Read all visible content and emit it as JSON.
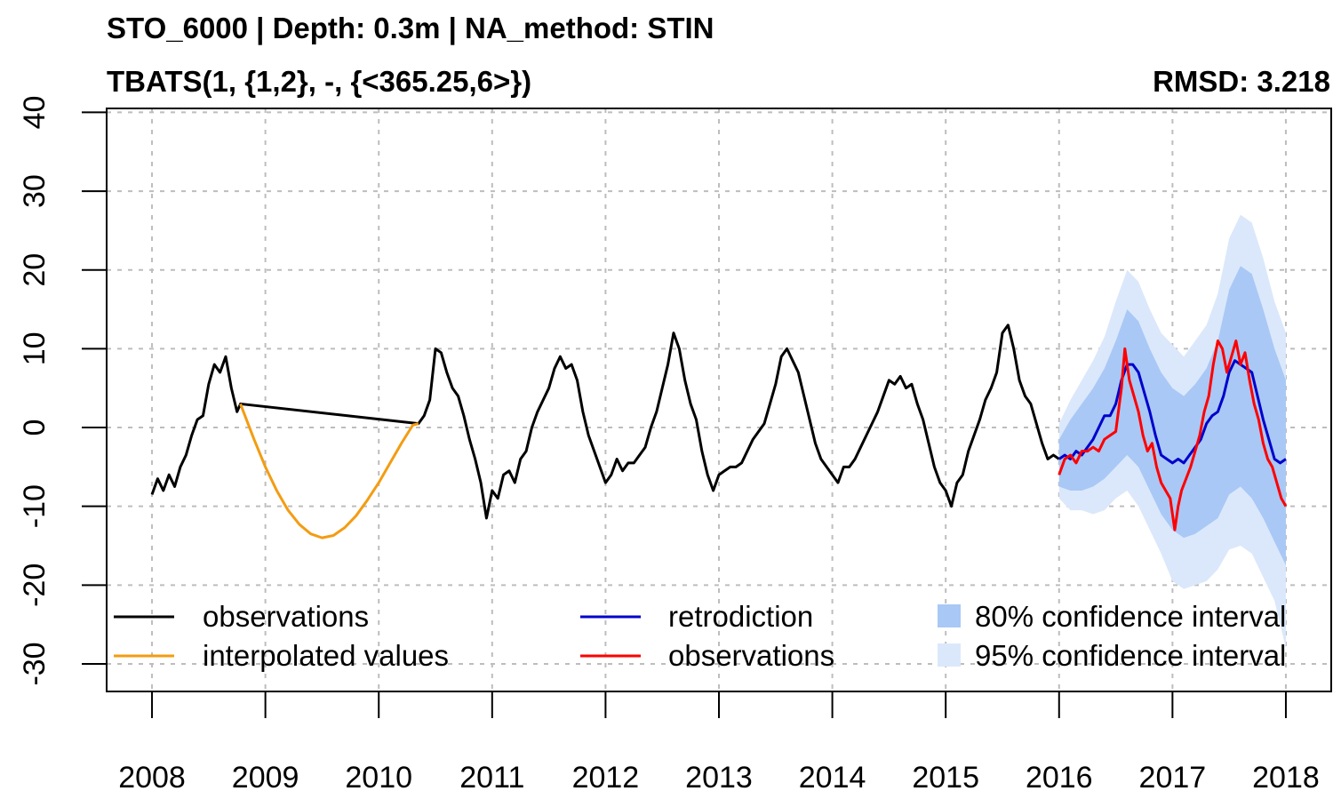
{
  "chart_data": {
    "type": "line",
    "title": "STO_6000 | Depth: 0.3m | NA_method: STIN",
    "subtitle": "TBATS(1, {1,2}, -, {<365.25,6>})",
    "annotation": "RMSD: 3.218",
    "xlabel": "",
    "ylabel": "",
    "xlim": [
      2007.6,
      2018.4
    ],
    "ylim": [
      -33.5,
      40.5
    ],
    "x_ticks": [
      2008,
      2009,
      2010,
      2011,
      2012,
      2013,
      2014,
      2015,
      2016,
      2017,
      2018
    ],
    "x_tick_labels": [
      "2008",
      "2009",
      "2010",
      "2011",
      "2012",
      "2013",
      "2014",
      "2015",
      "2016",
      "2017",
      "2018"
    ],
    "y_ticks": [
      -30,
      -20,
      -10,
      0,
      10,
      20,
      30,
      40
    ],
    "y_tick_labels": [
      "-30",
      "-20",
      "-10",
      "0",
      "10",
      "20",
      "30",
      "40"
    ],
    "grid": true,
    "legend_position": "bottom",
    "legend": [
      {
        "label": "observations",
        "type": "line",
        "color": "#000000"
      },
      {
        "label": "interpolated values",
        "type": "line",
        "color": "#f39c12"
      },
      {
        "label": "retrodiction",
        "type": "line",
        "color": "#0000cc"
      },
      {
        "label": "observations",
        "type": "line",
        "color": "#ff0000"
      },
      {
        "label": "80% confidence interval",
        "type": "band",
        "color": "#a9c8f5"
      },
      {
        "label": "95% confidence interval",
        "type": "band",
        "color": "#dbe8fb"
      }
    ],
    "series": [
      {
        "name": "observations",
        "color": "#000000",
        "points": [
          [
            2008.0,
            -8.5
          ],
          [
            2008.05,
            -6.5
          ],
          [
            2008.1,
            -8.0
          ],
          [
            2008.15,
            -6.0
          ],
          [
            2008.2,
            -7.5
          ],
          [
            2008.25,
            -5.0
          ],
          [
            2008.3,
            -3.5
          ],
          [
            2008.35,
            -1.0
          ],
          [
            2008.4,
            1.0
          ],
          [
            2008.45,
            1.5
          ],
          [
            2008.5,
            5.5
          ],
          [
            2008.55,
            8.0
          ],
          [
            2008.6,
            7.0
          ],
          [
            2008.65,
            9.0
          ],
          [
            2008.7,
            5.0
          ],
          [
            2008.75,
            2.0
          ],
          [
            2008.78,
            3.0
          ],
          [
            2010.35,
            0.5
          ],
          [
            2010.4,
            1.5
          ],
          [
            2010.45,
            3.5
          ],
          [
            2010.5,
            10.0
          ],
          [
            2010.55,
            9.5
          ],
          [
            2010.6,
            7.0
          ],
          [
            2010.65,
            5.0
          ],
          [
            2010.7,
            4.0
          ],
          [
            2010.75,
            1.5
          ],
          [
            2010.8,
            -1.5
          ],
          [
            2010.85,
            -4.0
          ],
          [
            2010.9,
            -7.0
          ],
          [
            2010.95,
            -11.5
          ],
          [
            2011.0,
            -8.0
          ],
          [
            2011.05,
            -9.0
          ],
          [
            2011.1,
            -6.0
          ],
          [
            2011.15,
            -5.5
          ],
          [
            2011.2,
            -7.0
          ],
          [
            2011.25,
            -4.0
          ],
          [
            2011.3,
            -3.0
          ],
          [
            2011.35,
            0.0
          ],
          [
            2011.4,
            2.0
          ],
          [
            2011.45,
            3.5
          ],
          [
            2011.5,
            5.0
          ],
          [
            2011.55,
            7.5
          ],
          [
            2011.6,
            9.0
          ],
          [
            2011.65,
            7.5
          ],
          [
            2011.7,
            8.0
          ],
          [
            2011.75,
            6.0
          ],
          [
            2011.8,
            2.0
          ],
          [
            2011.85,
            -1.0
          ],
          [
            2011.9,
            -3.0
          ],
          [
            2011.95,
            -5.0
          ],
          [
            2012.0,
            -7.0
          ],
          [
            2012.05,
            -6.0
          ],
          [
            2012.1,
            -4.0
          ],
          [
            2012.15,
            -5.5
          ],
          [
            2012.2,
            -4.5
          ],
          [
            2012.25,
            -4.5
          ],
          [
            2012.3,
            -3.5
          ],
          [
            2012.35,
            -2.5
          ],
          [
            2012.4,
            0.0
          ],
          [
            2012.45,
            2.0
          ],
          [
            2012.5,
            5.0
          ],
          [
            2012.55,
            8.0
          ],
          [
            2012.6,
            12.0
          ],
          [
            2012.65,
            10.0
          ],
          [
            2012.7,
            6.0
          ],
          [
            2012.75,
            3.0
          ],
          [
            2012.8,
            1.0
          ],
          [
            2012.85,
            -3.0
          ],
          [
            2012.9,
            -6.0
          ],
          [
            2012.95,
            -8.0
          ],
          [
            2013.0,
            -6.0
          ],
          [
            2013.05,
            -5.5
          ],
          [
            2013.1,
            -5.0
          ],
          [
            2013.15,
            -5.0
          ],
          [
            2013.2,
            -4.5
          ],
          [
            2013.25,
            -3.0
          ],
          [
            2013.3,
            -1.5
          ],
          [
            2013.35,
            -0.5
          ],
          [
            2013.4,
            0.5
          ],
          [
            2013.45,
            3.0
          ],
          [
            2013.5,
            5.5
          ],
          [
            2013.55,
            9.0
          ],
          [
            2013.6,
            10.0
          ],
          [
            2013.65,
            8.5
          ],
          [
            2013.7,
            7.0
          ],
          [
            2013.75,
            4.0
          ],
          [
            2013.8,
            1.0
          ],
          [
            2013.85,
            -2.0
          ],
          [
            2013.9,
            -4.0
          ],
          [
            2013.95,
            -5.0
          ],
          [
            2014.0,
            -6.0
          ],
          [
            2014.05,
            -7.0
          ],
          [
            2014.1,
            -5.0
          ],
          [
            2014.15,
            -5.0
          ],
          [
            2014.2,
            -4.0
          ],
          [
            2014.25,
            -2.5
          ],
          [
            2014.3,
            -1.0
          ],
          [
            2014.35,
            0.5
          ],
          [
            2014.4,
            2.0
          ],
          [
            2014.45,
            4.0
          ],
          [
            2014.5,
            6.0
          ],
          [
            2014.55,
            5.5
          ],
          [
            2014.6,
            6.5
          ],
          [
            2014.65,
            5.0
          ],
          [
            2014.7,
            5.5
          ],
          [
            2014.75,
            3.0
          ],
          [
            2014.8,
            1.0
          ],
          [
            2014.85,
            -2.0
          ],
          [
            2014.9,
            -5.0
          ],
          [
            2014.95,
            -7.0
          ],
          [
            2015.0,
            -8.0
          ],
          [
            2015.05,
            -10.0
          ],
          [
            2015.1,
            -7.0
          ],
          [
            2015.15,
            -6.0
          ],
          [
            2015.2,
            -3.0
          ],
          [
            2015.25,
            -1.0
          ],
          [
            2015.3,
            1.0
          ],
          [
            2015.35,
            3.5
          ],
          [
            2015.4,
            5.0
          ],
          [
            2015.45,
            7.0
          ],
          [
            2015.5,
            12.0
          ],
          [
            2015.55,
            13.0
          ],
          [
            2015.6,
            10.0
          ],
          [
            2015.65,
            6.0
          ],
          [
            2015.7,
            4.0
          ],
          [
            2015.75,
            3.0
          ],
          [
            2015.8,
            0.5
          ],
          [
            2015.85,
            -2.0
          ],
          [
            2015.9,
            -4.0
          ],
          [
            2015.95,
            -3.5
          ],
          [
            2016.0,
            -4.0
          ]
        ]
      },
      {
        "name": "interpolated values",
        "color": "#f39c12",
        "points": [
          [
            2008.78,
            3.0
          ],
          [
            2008.9,
            -1.5
          ],
          [
            2009.0,
            -5.0
          ],
          [
            2009.1,
            -8.0
          ],
          [
            2009.2,
            -10.5
          ],
          [
            2009.3,
            -12.3
          ],
          [
            2009.4,
            -13.5
          ],
          [
            2009.5,
            -14.0
          ],
          [
            2009.6,
            -13.7
          ],
          [
            2009.7,
            -12.7
          ],
          [
            2009.8,
            -11.2
          ],
          [
            2009.9,
            -9.2
          ],
          [
            2010.0,
            -7.0
          ],
          [
            2010.1,
            -4.5
          ],
          [
            2010.2,
            -2.0
          ],
          [
            2010.3,
            0.3
          ],
          [
            2010.35,
            0.5
          ]
        ]
      },
      {
        "name": "retrodiction",
        "color": "#0000cc",
        "points": [
          [
            2016.0,
            -4.0
          ],
          [
            2016.05,
            -3.5
          ],
          [
            2016.1,
            -4.0
          ],
          [
            2016.15,
            -3.0
          ],
          [
            2016.2,
            -3.5
          ],
          [
            2016.25,
            -2.5
          ],
          [
            2016.3,
            -1.5
          ],
          [
            2016.35,
            0.0
          ],
          [
            2016.4,
            1.5
          ],
          [
            2016.45,
            1.5
          ],
          [
            2016.5,
            3.0
          ],
          [
            2016.55,
            6.0
          ],
          [
            2016.6,
            8.0
          ],
          [
            2016.65,
            8.0
          ],
          [
            2016.7,
            7.0
          ],
          [
            2016.75,
            4.5
          ],
          [
            2016.8,
            2.0
          ],
          [
            2016.85,
            -1.0
          ],
          [
            2016.9,
            -3.5
          ],
          [
            2016.95,
            -4.0
          ],
          [
            2017.0,
            -4.5
          ],
          [
            2017.05,
            -4.0
          ],
          [
            2017.1,
            -4.5
          ],
          [
            2017.15,
            -3.5
          ],
          [
            2017.2,
            -2.5
          ],
          [
            2017.25,
            -1.5
          ],
          [
            2017.3,
            0.5
          ],
          [
            2017.35,
            1.5
          ],
          [
            2017.4,
            2.0
          ],
          [
            2017.45,
            4.0
          ],
          [
            2017.5,
            7.0
          ],
          [
            2017.55,
            8.5
          ],
          [
            2017.6,
            8.0
          ],
          [
            2017.65,
            7.5
          ],
          [
            2017.7,
            7.0
          ],
          [
            2017.75,
            4.0
          ],
          [
            2017.8,
            1.0
          ],
          [
            2017.85,
            -1.5
          ],
          [
            2017.9,
            -4.0
          ],
          [
            2017.95,
            -4.5
          ],
          [
            2018.0,
            -4.0
          ]
        ]
      },
      {
        "name": "observations",
        "color": "#ff0000",
        "points": [
          [
            2016.0,
            -6.0
          ],
          [
            2016.05,
            -4.0
          ],
          [
            2016.1,
            -3.5
          ],
          [
            2016.15,
            -4.5
          ],
          [
            2016.2,
            -3.0
          ],
          [
            2016.25,
            -3.0
          ],
          [
            2016.3,
            -2.5
          ],
          [
            2016.35,
            -3.0
          ],
          [
            2016.4,
            -1.5
          ],
          [
            2016.45,
            -1.0
          ],
          [
            2016.5,
            -0.5
          ],
          [
            2016.55,
            5.0
          ],
          [
            2016.58,
            10.0
          ],
          [
            2016.62,
            6.0
          ],
          [
            2016.66,
            4.0
          ],
          [
            2016.7,
            2.0
          ],
          [
            2016.74,
            -1.0
          ],
          [
            2016.78,
            -3.0
          ],
          [
            2016.82,
            -2.0
          ],
          [
            2016.86,
            -5.0
          ],
          [
            2016.9,
            -7.0
          ],
          [
            2016.94,
            -8.0
          ],
          [
            2016.98,
            -9.0
          ],
          [
            2017.0,
            -11.0
          ],
          [
            2017.02,
            -13.0
          ],
          [
            2017.05,
            -10.0
          ],
          [
            2017.08,
            -8.0
          ],
          [
            2017.12,
            -6.5
          ],
          [
            2017.16,
            -5.0
          ],
          [
            2017.2,
            -3.0
          ],
          [
            2017.24,
            -1.0
          ],
          [
            2017.28,
            2.0
          ],
          [
            2017.32,
            4.0
          ],
          [
            2017.36,
            8.0
          ],
          [
            2017.4,
            11.0
          ],
          [
            2017.44,
            10.0
          ],
          [
            2017.48,
            7.0
          ],
          [
            2017.52,
            9.0
          ],
          [
            2017.56,
            11.0
          ],
          [
            2017.6,
            8.0
          ],
          [
            2017.64,
            9.5
          ],
          [
            2017.68,
            6.0
          ],
          [
            2017.72,
            3.0
          ],
          [
            2017.76,
            1.0
          ],
          [
            2017.8,
            -2.0
          ],
          [
            2017.84,
            -4.0
          ],
          [
            2017.88,
            -5.0
          ],
          [
            2017.92,
            -7.0
          ],
          [
            2017.96,
            -9.0
          ],
          [
            2018.0,
            -10.0
          ]
        ]
      }
    ],
    "bands": [
      {
        "name": "95% confidence interval",
        "color": "#dbe8fb",
        "x": [
          2016.0,
          2016.1,
          2016.2,
          2016.3,
          2016.4,
          2016.5,
          2016.6,
          2016.7,
          2016.8,
          2016.9,
          2017.0,
          2017.1,
          2017.2,
          2017.3,
          2017.4,
          2017.5,
          2017.6,
          2017.7,
          2017.8,
          2017.9,
          2018.0
        ],
        "lower": [
          -9.0,
          -10.5,
          -10.5,
          -11.0,
          -10.5,
          -9.0,
          -8.0,
          -10.0,
          -13.0,
          -16.0,
          -19.5,
          -20.5,
          -20.0,
          -19.5,
          -18.0,
          -15.5,
          -15.0,
          -16.0,
          -19.0,
          -22.0,
          -28.0
        ],
        "upper": [
          0.5,
          3.5,
          6.0,
          8.5,
          11.5,
          16.0,
          20.0,
          18.5,
          15.0,
          12.0,
          10.5,
          9.0,
          11.0,
          13.0,
          17.0,
          24.0,
          27.0,
          26.0,
          21.5,
          16.0,
          12.0
        ]
      },
      {
        "name": "80% confidence interval",
        "color": "#a9c8f5",
        "x": [
          2016.0,
          2016.1,
          2016.2,
          2016.3,
          2016.4,
          2016.5,
          2016.6,
          2016.7,
          2016.8,
          2016.9,
          2017.0,
          2017.1,
          2017.2,
          2017.3,
          2017.4,
          2017.5,
          2017.6,
          2017.7,
          2017.8,
          2017.9,
          2018.0
        ],
        "lower": [
          -7.5,
          -8.0,
          -8.0,
          -7.5,
          -6.5,
          -5.0,
          -3.5,
          -5.0,
          -8.0,
          -11.0,
          -13.0,
          -14.0,
          -13.5,
          -12.5,
          -11.5,
          -8.5,
          -7.5,
          -9.0,
          -11.5,
          -14.5,
          -17.5
        ],
        "upper": [
          -1.5,
          1.0,
          3.0,
          5.0,
          7.5,
          11.0,
          15.0,
          13.5,
          10.0,
          7.0,
          5.0,
          4.0,
          5.5,
          7.5,
          11.0,
          17.5,
          20.5,
          19.5,
          15.0,
          10.0,
          6.0
        ]
      }
    ]
  }
}
